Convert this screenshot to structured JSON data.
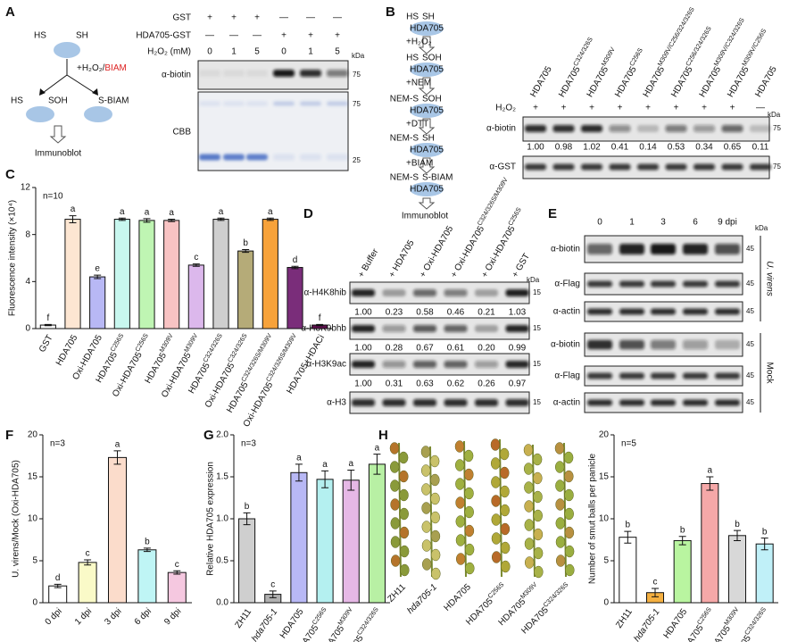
{
  "panel_labels": [
    "A",
    "B",
    "C",
    "D",
    "E",
    "F",
    "G",
    "H"
  ],
  "panel_a": {
    "diagram": {
      "top": [
        "HS",
        "SH"
      ],
      "reagent": "+H₂O₂/",
      "probe": "BIAM",
      "oxidized": [
        "HS",
        "SOH"
      ],
      "labeled": "S-BIAM",
      "readout": "Immunoblot"
    },
    "blot": {
      "conditions": [
        {
          "label": "GST",
          "marks": [
            "+",
            "+",
            "+",
            "—",
            "—",
            "—"
          ]
        },
        {
          "label": "HDA705-GST",
          "marks": [
            "—",
            "—",
            "—",
            "+",
            "+",
            "+"
          ]
        },
        {
          "label": "H₂O₂ (mM)",
          "marks": [
            "0",
            "1",
            "5",
            "0",
            "1",
            "5"
          ]
        }
      ],
      "kda": "kDa",
      "blots": [
        {
          "label": "α-biotin",
          "markers": [
            "75"
          ]
        },
        {
          "label": "CBB",
          "markers": [
            "75",
            "25"
          ]
        }
      ]
    }
  },
  "panel_b": {
    "diagram": {
      "protein": "HDA705",
      "states": [
        [
          "HS",
          "SH"
        ],
        [
          "HS",
          "SOH"
        ],
        [
          "NEM-S",
          "SOH"
        ],
        [
          "NEM-S",
          "SH"
        ],
        [
          "NEM-S",
          "S-BIAM"
        ]
      ],
      "reagents": [
        "+H₂O₂",
        "+NEM",
        "+DTT",
        "+BIAM"
      ],
      "readout": "Immunoblot"
    },
    "blot": {
      "columns": [
        "HDA705",
        {
          "text": "HDA705",
          "sup": "C324/326S"
        },
        {
          "text": "HDA705",
          "sup": "M309V"
        },
        {
          "text": "HDA705",
          "sup": "C256S"
        },
        {
          "text": "HDA705",
          "sup": "M309V/C256/324/326S"
        },
        {
          "text": "HDA705",
          "sup": "C256/324/326S"
        },
        {
          "text": "HDA705",
          "sup": "M309V/C324/326S"
        },
        {
          "text": "HDA705",
          "sup": "M309V/C256S"
        },
        "HDA705"
      ],
      "treatment": "H₂O₂",
      "marks": [
        "+",
        "+",
        "+",
        "+",
        "+",
        "+",
        "+",
        "+",
        "—"
      ],
      "kda": "kDa",
      "blots": [
        {
          "label": "α-biotin",
          "marker": "75",
          "quant": [
            "1.00",
            "0.98",
            "1.02",
            "0.41",
            "0.14",
            "0.53",
            "0.34",
            "0.65",
            "0.11"
          ]
        },
        {
          "label": "α-GST",
          "marker": "75"
        }
      ]
    }
  },
  "panel_d": {
    "columns": [
      "+ Buffer",
      "+ HDA705",
      "+ Oxi-HDA705",
      {
        "text": "+ Oxi-HDA705",
        "sup": "C324/326S/M309V"
      },
      {
        "text": "+ Oxi-HDA705",
        "sup": "C256S"
      },
      "+ GST"
    ],
    "kda": "kDa",
    "blots": [
      {
        "label": "α-H4K8hib",
        "marker": "15",
        "quant": [
          "1.00",
          "0.23",
          "0.58",
          "0.46",
          "0.21",
          "1.03"
        ]
      },
      {
        "label": "α-H3K9bhb",
        "marker": "15",
        "quant": [
          "1.00",
          "0.28",
          "0.67",
          "0.61",
          "0.20",
          "0.99"
        ]
      },
      {
        "label": "α-H3K9ac",
        "marker": "15",
        "quant": [
          "1.00",
          "0.31",
          "0.63",
          "0.62",
          "0.26",
          "0.97"
        ]
      },
      {
        "label": "α-H3",
        "marker": "15"
      }
    ]
  },
  "panel_e": {
    "columns": [
      "0",
      "1",
      "3",
      "6",
      "9 dpi"
    ],
    "kda": "kDa",
    "groups": [
      {
        "label": "U. virens",
        "blots": [
          {
            "label": "α-biotin",
            "marker": "45"
          },
          {
            "label": "α-Flag",
            "marker": "45"
          },
          {
            "label": "α-actin",
            "marker": "45"
          }
        ]
      },
      {
        "label": "Mock",
        "blots": [
          {
            "label": "α-biotin",
            "marker": "45"
          },
          {
            "label": "α-Flag",
            "marker": "45"
          },
          {
            "label": "α-actin",
            "marker": "45"
          }
        ]
      }
    ]
  },
  "panel_h_photo": {
    "labels": [
      "ZH11",
      "hda705-1",
      "HDA705",
      {
        "text": "HDA705",
        "sup": "C256S"
      },
      {
        "text": "HDA705",
        "sup": "M309V"
      },
      {
        "text": "HDA705",
        "sup": "C324/326S"
      }
    ]
  },
  "chart_data": [
    {
      "type": "bar",
      "y_label": "Fluorescence intensity (×10⁴)",
      "n_label": "n=10",
      "categories": [
        "GST",
        "HDA705",
        "Oxi-HDA705",
        {
          "text": "HDA705",
          "sup": "C256S"
        },
        {
          "text": "Oxi-HDA705",
          "sup": "C256S"
        },
        {
          "text": "HDA705",
          "sup": "M309V"
        },
        {
          "text": "Oxi-HDA705",
          "sup": "M309V"
        },
        {
          "text": "HDA705",
          "sup": "C324/326S"
        },
        {
          "text": "Oxi-HDA705",
          "sup": "C324/326S"
        },
        {
          "text": "HDA705",
          "sup": "C324/326S/M309V"
        },
        {
          "text": "Oxi-HDA705",
          "sup": "C324/326S/M309V"
        },
        "HDA705+HDACi"
      ],
      "values": [
        0.3,
        9.3,
        4.4,
        9.3,
        9.2,
        9.2,
        5.4,
        9.3,
        6.6,
        9.3,
        5.2,
        0.3
      ],
      "errors": [
        0.05,
        0.3,
        0.15,
        0.1,
        0.15,
        0.1,
        0.1,
        0.1,
        0.12,
        0.1,
        0.1,
        0.05
      ],
      "letters": [
        "f",
        "a",
        "e",
        "a",
        "a",
        "a",
        "c",
        "a",
        "b",
        "a",
        "d",
        "f"
      ],
      "colors": [
        "#ffffff",
        "#fde6d2",
        "#b8b8f5",
        "#c8f7ef",
        "#bff5b3",
        "#f8c3c3",
        "#dcb8ec",
        "#cfcfcf",
        "#b5ab78",
        "#f7a23a",
        "#7a2d7a",
        "#5c0f4c"
      ],
      "ylim": [
        0,
        12
      ],
      "yticks": [
        0,
        4,
        8,
        12
      ]
    },
    {
      "type": "bar",
      "y_label": "U. virens/Mock (Oxi-HDA705)",
      "n_label": "n=3",
      "categories": [
        "0 dpi",
        "1 dpi",
        "3 dpi",
        "6 dpi",
        "9 dpi"
      ],
      "values": [
        2.0,
        4.8,
        17.3,
        6.3,
        3.6
      ],
      "errors": [
        0.2,
        0.3,
        0.8,
        0.2,
        0.2
      ],
      "letters": [
        "d",
        "c",
        "a",
        "b",
        "c"
      ],
      "colors": [
        "#ffffff",
        "#fafac8",
        "#fbdccb",
        "#bff5f5",
        "#f5c8e0"
      ],
      "ylim": [
        0,
        20
      ],
      "yticks": [
        0,
        5,
        10,
        15,
        20
      ]
    },
    {
      "type": "bar",
      "y_label": "Relative HDA705 expression",
      "n_label": "n=3",
      "categories": [
        "ZH11",
        "hda705-1",
        "HDA705",
        {
          "text": "HDA705",
          "sup": "C256S"
        },
        {
          "text": "HDA705",
          "sup": "M309V"
        },
        {
          "text": "HDA705",
          "sup": "C324/326S"
        }
      ],
      "values": [
        1.0,
        0.1,
        1.55,
        1.47,
        1.46,
        1.65
      ],
      "errors": [
        0.07,
        0.04,
        0.1,
        0.1,
        0.12,
        0.12
      ],
      "letters": [
        "b",
        "c",
        "a",
        "a",
        "a",
        "a"
      ],
      "colors": [
        "#cfcfcf",
        "#b0b0b0",
        "#b8b8f5",
        "#b4f0f0",
        "#e6b8e6",
        "#b8f0a4"
      ],
      "ylim": [
        0,
        2
      ],
      "yticks": [
        {
          "value": 0,
          "label": "0.0"
        },
        0.5,
        {
          "value": 1,
          "label": "1.0"
        },
        1.5,
        {
          "value": 2,
          "label": "2.0"
        }
      ]
    },
    {
      "type": "bar",
      "y_label": "Number of smut balls per panicle",
      "n_label": "n=5",
      "categories": [
        "ZH11",
        "hda705-1",
        "HDA705",
        {
          "text": "HDA705",
          "sup": "C256S"
        },
        {
          "text": "HDA705",
          "sup": "M309V"
        },
        {
          "text": "HDA705",
          "sup": "C324/326S"
        }
      ],
      "values": [
        7.8,
        1.2,
        7.4,
        14.2,
        8.0,
        7.0
      ],
      "errors": [
        0.7,
        0.5,
        0.5,
        0.8,
        0.6,
        0.7
      ],
      "letters": [
        "b",
        "c",
        "b",
        "a",
        "b",
        "b"
      ],
      "colors": [
        "#ffffff",
        "#f5b041",
        "#b9f5a0",
        "#f5a8a8",
        "#d8d8d8",
        "#c0f0f8"
      ],
      "ylim": [
        0,
        20
      ],
      "yticks": [
        0,
        5,
        10,
        15,
        20
      ]
    }
  ]
}
